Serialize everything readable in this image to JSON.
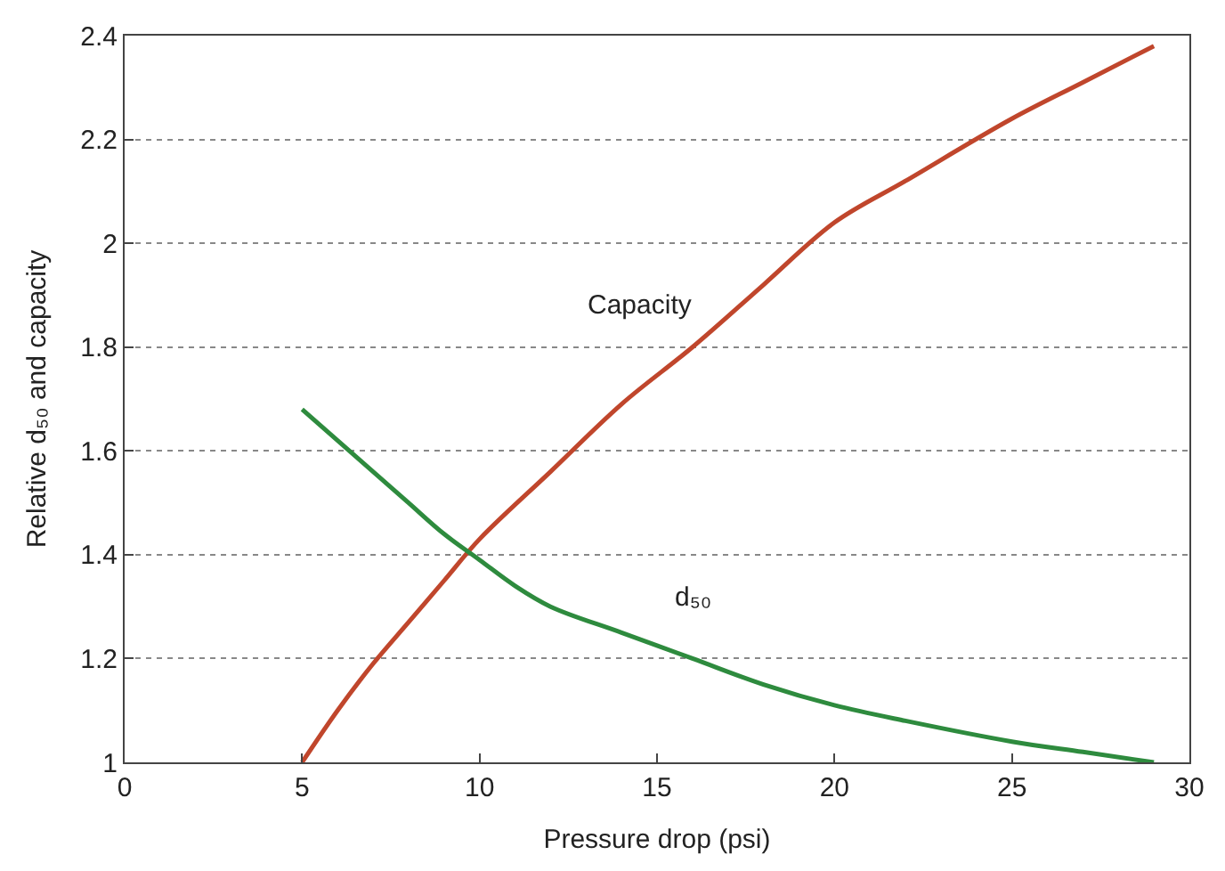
{
  "chart_data": {
    "type": "line",
    "xlabel": "Pressure drop (psi)",
    "ylabel": "Relative d₅₀ and capacity",
    "series": [
      {
        "name": "Capacity",
        "color": "#c0462c",
        "x": [
          5,
          6,
          7,
          8,
          9,
          10,
          12,
          14,
          16,
          18,
          20,
          22,
          25,
          27,
          29
        ],
        "values": [
          1.0,
          1.1,
          1.19,
          1.27,
          1.35,
          1.43,
          1.56,
          1.69,
          1.8,
          1.92,
          2.04,
          2.12,
          2.24,
          2.31,
          2.38
        ]
      },
      {
        "name": "d₅₀",
        "color": "#2e8b3e",
        "x": [
          5,
          6,
          7,
          8,
          9,
          10,
          11,
          12,
          14,
          16,
          18,
          20,
          22,
          25,
          27,
          29
        ],
        "values": [
          1.68,
          1.62,
          1.56,
          1.5,
          1.44,
          1.39,
          1.34,
          1.3,
          1.25,
          1.2,
          1.15,
          1.11,
          1.08,
          1.04,
          1.02,
          1.0
        ]
      }
    ],
    "xlim": [
      0,
      30
    ],
    "xticks": [
      0,
      5,
      10,
      15,
      20,
      25,
      30
    ],
    "ylim": [
      1,
      2.4
    ],
    "yticks": [
      1,
      1.2,
      1.4,
      1.6,
      1.8,
      2,
      2.2,
      2.4
    ],
    "grid": "y",
    "marker": "none",
    "line_style": "solid"
  }
}
